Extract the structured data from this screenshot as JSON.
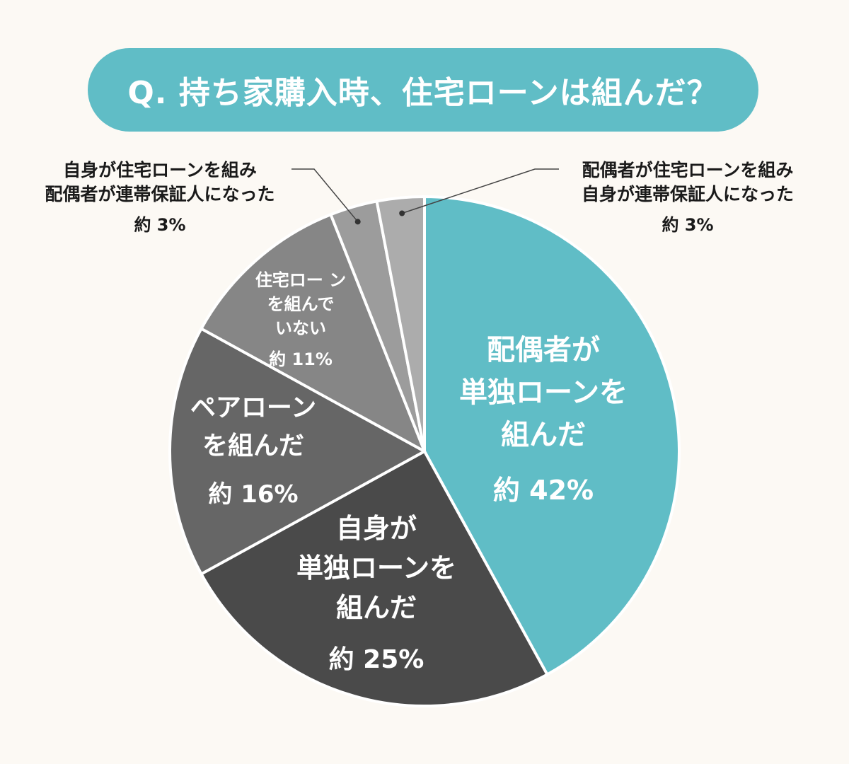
{
  "chart_data": {
    "type": "pie",
    "title": "Q. 持ち家購入時、住宅ローンは組んだ？",
    "slices": [
      {
        "label": [
          "配偶者が",
          "単独ローンを",
          "組んだ"
        ],
        "value": 42,
        "value_label": "約 42%",
        "color": "#60bdc6"
      },
      {
        "label": [
          "自身が",
          "単独ローンを",
          "組んだ"
        ],
        "value": 25,
        "value_label": "約 25%",
        "color": "#4a4a4a"
      },
      {
        "label": [
          "ペアローン",
          "を組んだ"
        ],
        "value": 16,
        "value_label": "約 16%",
        "color": "#666666"
      },
      {
        "label": [
          "住宅ロー ン",
          "を組んで",
          "いない"
        ],
        "value": 11,
        "value_label": "約 11%",
        "color": "#868686"
      },
      {
        "label": [
          "自身が住宅ローンを組み",
          "配偶者が連帯保証人になった"
        ],
        "value": 3,
        "value_label": "約 3%",
        "color": "#9c9c9c"
      },
      {
        "label": [
          "配偶者が住宅ローンを組み",
          "自身が連帯保証人になった"
        ],
        "value": 3,
        "value_label": "約 3%",
        "color": "#acacac"
      }
    ],
    "legend": "none",
    "grid": false
  },
  "colors": {
    "background": "#fcf9f4",
    "accent": "#60bdc6",
    "slice_border": "#ffffff",
    "leader_line": "#444444",
    "text_dark": "#1a1a1a"
  }
}
